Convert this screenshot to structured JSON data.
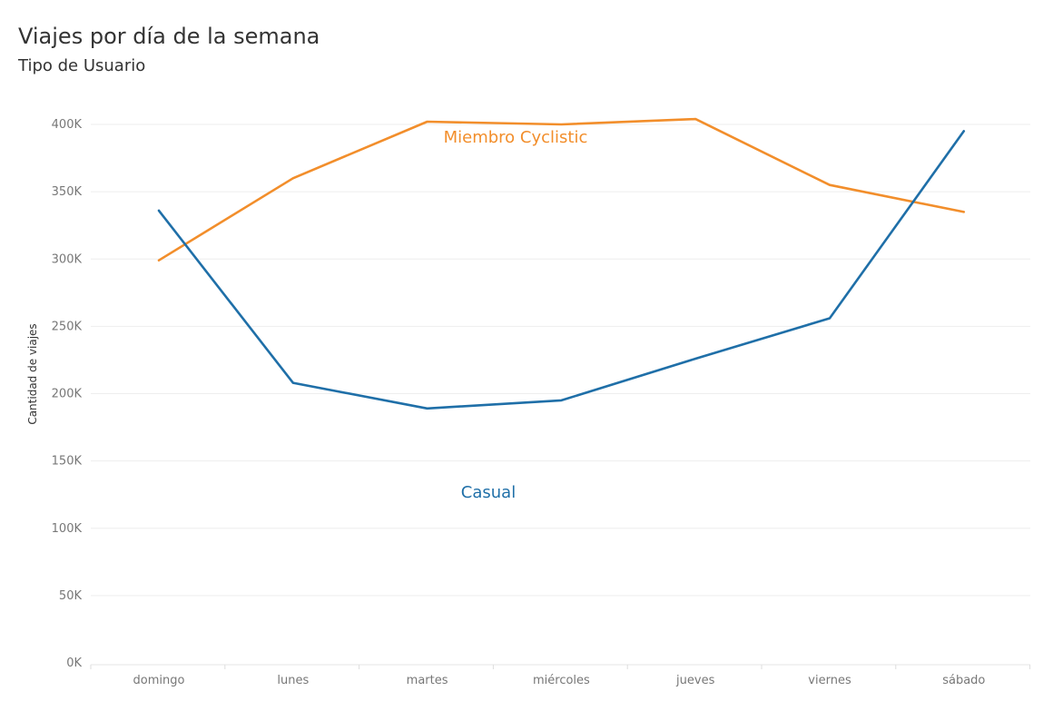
{
  "chart_data": {
    "type": "line",
    "title": "Viajes por día de la semana",
    "subtitle": "Tipo de Usuario",
    "xlabel": "",
    "ylabel": "Cantidad de viajes",
    "categories": [
      "domingo",
      "lunes",
      "martes",
      "miércoles",
      "jueves",
      "viernes",
      "sábado"
    ],
    "ylim": [
      0,
      400000
    ],
    "yticks": [
      0,
      50000,
      100000,
      150000,
      200000,
      250000,
      300000,
      350000,
      400000
    ],
    "ytick_labels": [
      "0K",
      "50K",
      "100K",
      "150K",
      "200K",
      "250K",
      "300K",
      "350K",
      "400K"
    ],
    "grid": true,
    "legend": "inline labels",
    "series": [
      {
        "name": "Miembro Cyclistic",
        "color": "#f28e2b",
        "values": [
          299000,
          360000,
          402000,
          400000,
          404000,
          355000,
          335000
        ]
      },
      {
        "name": "Casual",
        "color": "#1f6fa8",
        "values": [
          336000,
          208000,
          189000,
          195000,
          226000,
          256000,
          395000
        ]
      }
    ]
  }
}
